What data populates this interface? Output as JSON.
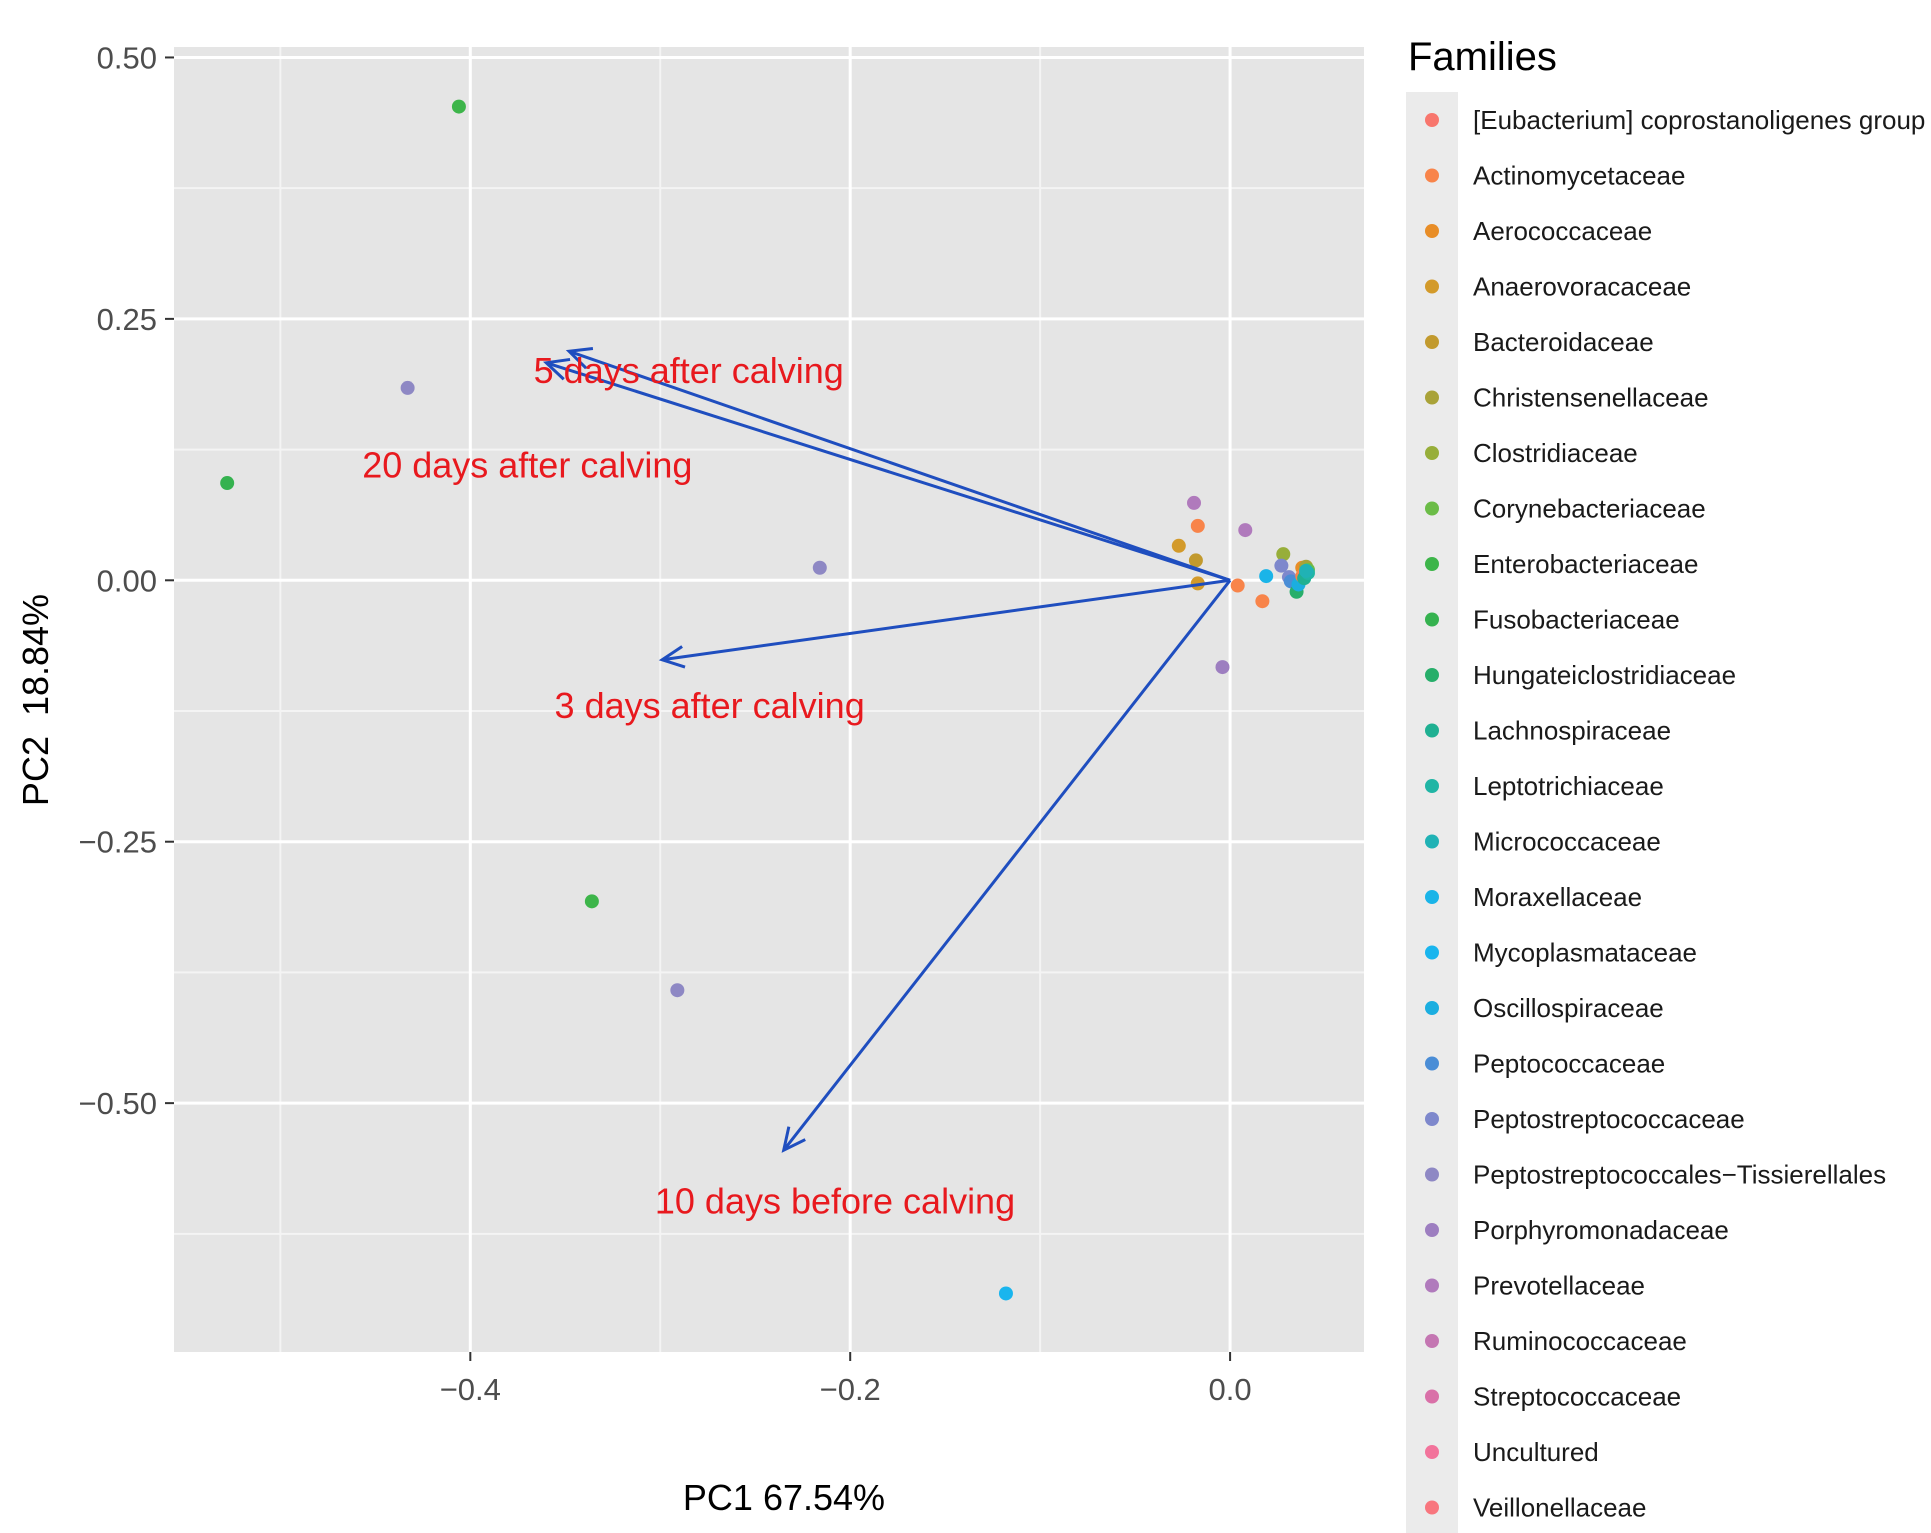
{
  "chart_data": {
    "type": "scatter",
    "subtype": "biplot",
    "title": "",
    "xlabel": "PC1 67.54%",
    "ylabel": "PC2  18.84%",
    "xlim": [
      -0.556,
      0.0705
    ],
    "ylim": [
      -0.738,
      0.51
    ],
    "grid": true,
    "x_ticks": [
      -0.4,
      -0.2,
      0.0
    ],
    "x_tick_labels": [
      "−0.4",
      "−0.2",
      "0.0"
    ],
    "x_minor_grid": [
      -0.5,
      -0.3,
      -0.1
    ],
    "y_ticks": [
      0.5,
      0.25,
      0.0,
      -0.25,
      -0.5
    ],
    "y_tick_labels": [
      "0.50",
      "0.25",
      "0.00",
      "−0.25",
      "−0.50"
    ],
    "y_minor_grid": [
      0.375,
      0.125,
      -0.125,
      -0.375,
      -0.625
    ],
    "legend": {
      "title": "Families",
      "position": "right",
      "entries": [
        {
          "name": "[Eubacterium] coprostanoligenes group",
          "color": "#F8766D"
        },
        {
          "name": "Actinomycetaceae",
          "color": "#F8844A"
        },
        {
          "name": "Aerococcaceae",
          "color": "#E88D27"
        },
        {
          "name": "Anaerovoracaceae",
          "color": "#D39A2A"
        },
        {
          "name": "Bacteroidaceae",
          "color": "#C29A2E"
        },
        {
          "name": "Christensenellaceae",
          "color": "#A9A238"
        },
        {
          "name": "Clostridiaceae",
          "color": "#97AE3A"
        },
        {
          "name": "Corynebacteriaceae",
          "color": "#6BBC47"
        },
        {
          "name": "Enterobacteriaceae",
          "color": "#3DB54A"
        },
        {
          "name": "Fusobacteriaceae",
          "color": "#35B24F"
        },
        {
          "name": "Hungateiclostridiaceae",
          "color": "#27AE6A"
        },
        {
          "name": "Lachnospiraceae",
          "color": "#1FB092"
        },
        {
          "name": "Leptotrichiaceae",
          "color": "#20B5A5"
        },
        {
          "name": "Micrococcaceae",
          "color": "#20B2B5"
        },
        {
          "name": "Moraxellaceae",
          "color": "#1AB4E8"
        },
        {
          "name": "Mycoplasmataceae",
          "color": "#19B5EE"
        },
        {
          "name": "Oscillospiraceae",
          "color": "#1BAEE0"
        },
        {
          "name": "Peptococcaceae",
          "color": "#4A8DD6"
        },
        {
          "name": "Peptostreptococcaceae",
          "color": "#7E88CC"
        },
        {
          "name": "Peptostreptococcales−Tissierellales",
          "color": "#8E88C4"
        },
        {
          "name": "Porphyromonadaceae",
          "color": "#9D7EC0"
        },
        {
          "name": "Prevotellaceae",
          "color": "#B07ABC"
        },
        {
          "name": "Ruminococcaceae",
          "color": "#C476B2"
        },
        {
          "name": "Streptococcaceae",
          "color": "#D970A8"
        },
        {
          "name": "Uncultured",
          "color": "#F2739B"
        },
        {
          "name": "Veillonellaceae",
          "color": "#F8767E"
        }
      ]
    },
    "points": [
      {
        "family": "Enterobacteriaceae",
        "x": -0.406,
        "y": 0.453
      },
      {
        "family": "Peptostreptococcales−Tissierellales",
        "x": -0.433,
        "y": 0.184
      },
      {
        "family": "Fusobacteriaceae",
        "x": -0.528,
        "y": 0.093
      },
      {
        "family": "Peptostreptococcales−Tissierellales",
        "x": -0.216,
        "y": 0.012
      },
      {
        "family": "Enterobacteriaceae",
        "x": -0.336,
        "y": -0.307
      },
      {
        "family": "Peptostreptococcales−Tissierellales",
        "x": -0.291,
        "y": -0.392
      },
      {
        "family": "Mycoplasmataceae",
        "x": -0.118,
        "y": -0.682
      },
      {
        "family": "Prevotellaceae",
        "x": -0.019,
        "y": 0.074
      },
      {
        "family": "Actinomycetaceae",
        "x": -0.017,
        "y": 0.052
      },
      {
        "family": "Anaerovoracaceae",
        "x": -0.027,
        "y": 0.033
      },
      {
        "family": "Bacteroidaceae",
        "x": -0.018,
        "y": 0.019
      },
      {
        "family": "Anaerovoracaceae",
        "x": -0.017,
        "y": -0.003
      },
      {
        "family": "Prevotellaceae",
        "x": 0.008,
        "y": 0.048
      },
      {
        "family": "Porphyromonadaceae",
        "x": -0.004,
        "y": -0.083
      },
      {
        "family": "Actinomycetaceae",
        "x": 0.004,
        "y": -0.005
      },
      {
        "family": "Moraxellaceae",
        "x": 0.019,
        "y": 0.004
      },
      {
        "family": "Actinomycetaceae",
        "x": 0.017,
        "y": -0.02
      },
      {
        "family": "Clostridiaceae",
        "x": 0.028,
        "y": 0.025
      },
      {
        "family": "Peptostreptococcaceae",
        "x": 0.027,
        "y": 0.014
      },
      {
        "family": "Peptostreptococcaceae",
        "x": 0.031,
        "y": 0.003
      },
      {
        "family": "Peptococcaceae",
        "x": 0.032,
        "y": -0.001
      },
      {
        "family": "Hungateiclostridiaceae",
        "x": 0.035,
        "y": -0.011
      },
      {
        "family": "Oscillospiraceae",
        "x": 0.036,
        "y": -0.004
      },
      {
        "family": "Aerococcaceae",
        "x": 0.038,
        "y": 0.012
      },
      {
        "family": "Christensenellaceae",
        "x": 0.04,
        "y": 0.013
      },
      {
        "family": "Actinomycetaceae",
        "x": 0.038,
        "y": 0.004
      },
      {
        "family": "Corynebacteriaceae",
        "x": 0.041,
        "y": 0.01
      },
      {
        "family": "Enterobacteriaceae",
        "x": 0.04,
        "y": 0.006
      },
      {
        "family": "Lachnospiraceae",
        "x": 0.039,
        "y": 0.002
      },
      {
        "family": "Leptotrichiaceae",
        "x": 0.041,
        "y": 0.007
      },
      {
        "family": "Micrococcaceae",
        "x": 0.04,
        "y": 0.009
      }
    ],
    "vectors": [
      {
        "label": "5 days after calving",
        "x": -0.348,
        "y": 0.219,
        "label_x": -0.285,
        "label_y": 0.2
      },
      {
        "label": "20 days after calving",
        "x": -0.36,
        "y": 0.208,
        "label_x": -0.37,
        "label_y": 0.11
      },
      {
        "label": "3 days after calving",
        "x": -0.299,
        "y": -0.076,
        "label_x": -0.274,
        "label_y": -0.12
      },
      {
        "label": "10 days before calving",
        "x": -0.235,
        "y": -0.545,
        "label_x": -0.208,
        "label_y": -0.594
      }
    ],
    "vector_color": "#1F4EBF",
    "annotation_color": "#E8191E"
  }
}
